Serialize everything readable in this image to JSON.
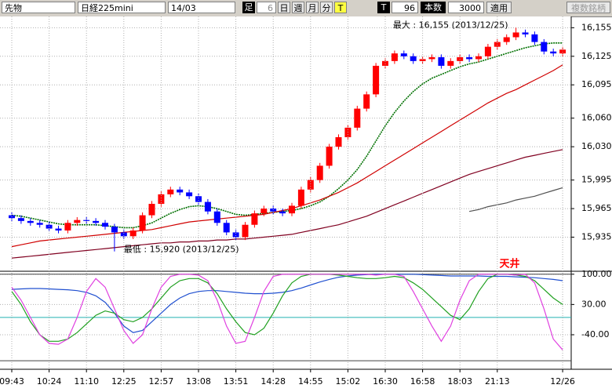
{
  "toolbar": {
    "market": "先物",
    "symbol": "日経225mini",
    "contract": "14/03",
    "bar_label": "足",
    "bar_value": "6",
    "day": "日",
    "week": "週",
    "month": "月",
    "minute": "分",
    "t_button": "T",
    "t_label": "T",
    "count_value": "96",
    "count_label": "本数",
    "count_input": "3000",
    "apply": "適用",
    "multi": "複数銘柄"
  },
  "chart_data": [
    {
      "type": "candlestick",
      "up_color": "#ff0000",
      "down_color": "#0000ff",
      "max_label": "最大 : 16,155 (2013/12/25)",
      "min_label": "最低 : 15,920 (2013/12/25)",
      "open": [
        15958,
        15955,
        15952,
        15950,
        15948,
        15944,
        15942,
        15950,
        15953,
        15952,
        15950,
        15946,
        15940,
        15936,
        15942,
        15958,
        15970,
        15980,
        15985,
        15982,
        15978,
        15972,
        15962,
        15950,
        15940,
        15935,
        15948,
        15960,
        15965,
        15962,
        15960,
        15968,
        15985,
        15995,
        16010,
        16030,
        16040,
        16050,
        16070,
        16085,
        16115,
        16120,
        16128,
        16125,
        16120,
        16122,
        16124,
        16115,
        16120,
        16124,
        16122,
        16125,
        16135,
        16140,
        16145,
        16150,
        16148,
        16140,
        16130,
        16128
      ],
      "close": [
        15955,
        15952,
        15950,
        15948,
        15944,
        15942,
        15950,
        15953,
        15952,
        15950,
        15946,
        15940,
        15936,
        15942,
        15958,
        15970,
        15980,
        15985,
        15982,
        15978,
        15972,
        15962,
        15950,
        15940,
        15935,
        15948,
        15960,
        15965,
        15962,
        15960,
        15968,
        15985,
        15995,
        16010,
        16030,
        16040,
        16050,
        16070,
        16085,
        16115,
        16120,
        16128,
        16125,
        16120,
        16122,
        16124,
        16115,
        16120,
        16124,
        16122,
        16125,
        16135,
        16140,
        16145,
        16150,
        16148,
        16140,
        16130,
        16128,
        16132
      ],
      "high": [
        15961,
        15958,
        15955,
        15953,
        15951,
        15947,
        15953,
        15956,
        15956,
        15955,
        15953,
        15949,
        15943,
        15945,
        15961,
        15973,
        15983,
        15988,
        15988,
        15985,
        15981,
        15975,
        15965,
        15953,
        15943,
        15951,
        15963,
        15968,
        15968,
        15965,
        15971,
        15988,
        15998,
        16013,
        16033,
        16043,
        16053,
        16073,
        16088,
        16118,
        16123,
        16131,
        16131,
        16128,
        16125,
        16127,
        16127,
        16123,
        16127,
        16127,
        16128,
        16138,
        16143,
        16148,
        16155,
        16153,
        16151,
        16143,
        16133,
        16135
      ],
      "low": [
        15952,
        15949,
        15947,
        15945,
        15941,
        15939,
        15939,
        15947,
        15949,
        15947,
        15943,
        15920,
        15933,
        15933,
        15939,
        15955,
        15967,
        15977,
        15979,
        15975,
        15969,
        15959,
        15947,
        15937,
        15932,
        15932,
        15945,
        15957,
        15959,
        15957,
        15957,
        15965,
        15982,
        15992,
        16007,
        16027,
        16037,
        16047,
        16067,
        16082,
        16112,
        16117,
        16122,
        16117,
        16117,
        16119,
        16112,
        16112,
        16117,
        16119,
        16119,
        16122,
        16132,
        16137,
        16142,
        16145,
        16137,
        16127,
        16125,
        16125
      ],
      "series": [
        {
          "color": "#007000",
          "dotted": true,
          "values": [
            15958,
            15957,
            15955,
            15953,
            15951,
            15949,
            15948,
            15948,
            15948,
            15948,
            15947,
            15946,
            15945,
            15945,
            15947,
            15950,
            15955,
            15960,
            15964,
            15967,
            15968,
            15967,
            15965,
            15962,
            15959,
            15958,
            15959,
            15960,
            15961,
            15962,
            15963,
            15965,
            15968,
            15972,
            15978,
            15986,
            15995,
            16006,
            16020,
            16036,
            16052,
            16066,
            16078,
            16088,
            16096,
            16102,
            16106,
            16110,
            16114,
            16117,
            16119,
            16122,
            16125,
            16128,
            16131,
            16134,
            16136,
            16138,
            16139,
            16139
          ]
        },
        {
          "color": "#d00000",
          "dotted": false,
          "values": [
            15925,
            15927,
            15929,
            15931,
            15932,
            15933,
            15934,
            15935,
            15936,
            15937,
            15938,
            15939,
            15940,
            15941,
            15942,
            15943,
            15945,
            15947,
            15949,
            15951,
            15952,
            15953,
            15954,
            15955,
            15956,
            15957,
            15958,
            15959,
            15961,
            15963,
            15965,
            15968,
            15971,
            15974,
            15978,
            15982,
            15987,
            15992,
            15998,
            16004,
            16010,
            16016,
            16022,
            16028,
            16034,
            16040,
            16046,
            16052,
            16058,
            16064,
            16070,
            16076,
            16081,
            16086,
            16090,
            16095,
            16100,
            16105,
            16110,
            16116
          ]
        },
        {
          "color": "#800020",
          "dotted": false,
          "values": [
            15913,
            15914,
            15915,
            15916,
            15917,
            15918,
            15919,
            15920,
            15921,
            15922,
            15923,
            15924,
            15925,
            15926,
            15927,
            15928,
            15929,
            15929,
            15930,
            15930,
            15931,
            15931,
            15932,
            15932,
            15933,
            15933,
            15934,
            15935,
            15936,
            15937,
            15938,
            15940,
            15942,
            15944,
            15946,
            15948,
            15951,
            15954,
            15957,
            15961,
            15965,
            15969,
            15973,
            15977,
            15981,
            15985,
            15989,
            15993,
            15997,
            16001,
            16004,
            16007,
            16010,
            16013,
            16016,
            16019,
            16021,
            16023,
            16025,
            16027
          ]
        },
        {
          "color": "#505050",
          "dotted": false,
          "values": [
            null,
            null,
            null,
            null,
            null,
            null,
            null,
            null,
            null,
            null,
            null,
            null,
            null,
            null,
            null,
            null,
            null,
            null,
            null,
            null,
            null,
            null,
            null,
            null,
            null,
            null,
            null,
            null,
            null,
            null,
            null,
            null,
            null,
            null,
            null,
            null,
            null,
            null,
            null,
            null,
            null,
            null,
            null,
            null,
            null,
            null,
            null,
            null,
            null,
            15962,
            15964,
            15967,
            15969,
            15971,
            15974,
            15976,
            15978,
            15981,
            15984,
            15987
          ]
        }
      ],
      "ylim": [
        15900,
        16166
      ],
      "yticks": [
        {
          "value": 16155,
          "label": "16,155"
        },
        {
          "value": 16125,
          "label": "16,125"
        },
        {
          "value": 16095,
          "label": "16,095"
        },
        {
          "value": 16060,
          "label": "16,060"
        },
        {
          "value": 16030,
          "label": "16,030"
        },
        {
          "value": 15995,
          "label": "15,995"
        },
        {
          "value": 15965,
          "label": "15,965"
        },
        {
          "value": 15935,
          "label": "15,935"
        }
      ],
      "grid": true
    },
    {
      "type": "line",
      "annotation": "天井",
      "annotation_color": "#ff0000",
      "categories": [
        "09:43",
        null,
        null,
        null,
        "10:24",
        null,
        null,
        null,
        "11:10",
        null,
        null,
        null,
        "12:25",
        null,
        null,
        null,
        "12:57",
        null,
        null,
        null,
        "13:08",
        null,
        null,
        null,
        "13:51",
        null,
        null,
        null,
        "14:28",
        null,
        null,
        null,
        "14:55",
        null,
        null,
        null,
        "15:02",
        null,
        null,
        null,
        "16:30",
        null,
        null,
        null,
        "16:58",
        null,
        null,
        null,
        "18:03",
        null,
        null,
        null,
        "21:13",
        null,
        null,
        null,
        null,
        null,
        null,
        "12/26"
      ],
      "series": [
        {
          "color": "#2050d0",
          "values": [
            65,
            66,
            67,
            67,
            66,
            65,
            64,
            62,
            58,
            50,
            35,
            10,
            -20,
            -35,
            -30,
            -10,
            10,
            30,
            45,
            55,
            60,
            62,
            62,
            60,
            58,
            56,
            55,
            55,
            56,
            58,
            62,
            68,
            75,
            82,
            88,
            93,
            96,
            98,
            99,
            100,
            100,
            100,
            100,
            100,
            99,
            98,
            97,
            96,
            96,
            96,
            96,
            95,
            95,
            95,
            94,
            93,
            92,
            90,
            88,
            85
          ]
        },
        {
          "color": "#20a020",
          "values": [
            60,
            30,
            -10,
            -40,
            -55,
            -55,
            -50,
            -35,
            -15,
            5,
            15,
            10,
            -5,
            -10,
            0,
            20,
            45,
            70,
            85,
            90,
            90,
            80,
            55,
            20,
            -10,
            -35,
            -40,
            -25,
            10,
            50,
            80,
            95,
            100,
            100,
            100,
            98,
            95,
            92,
            90,
            90,
            92,
            95,
            92,
            80,
            65,
            45,
            25,
            5,
            -5,
            20,
            60,
            90,
            100,
            100,
            98,
            95,
            85,
            65,
            45,
            30
          ]
        },
        {
          "color": "#e040e0",
          "values": [
            70,
            40,
            0,
            -40,
            -60,
            -62,
            -50,
            0,
            60,
            90,
            70,
            20,
            -30,
            -60,
            -40,
            20,
            70,
            95,
            100,
            100,
            98,
            85,
            40,
            -20,
            -60,
            -55,
            0,
            60,
            95,
            100,
            100,
            100,
            100,
            100,
            100,
            100,
            100,
            100,
            100,
            98,
            100,
            100,
            95,
            60,
            20,
            -20,
            -55,
            -20,
            40,
            85,
            100,
            100,
            100,
            100,
            98,
            100,
            80,
            20,
            -50,
            -75
          ]
        }
      ],
      "hlines": [
        {
          "value": 100,
          "color": "#404040"
        },
        {
          "value": 0,
          "color": "#20b0b0"
        },
        {
          "value": -100,
          "color": "#404040"
        }
      ],
      "ylim": [
        -118,
        105
      ],
      "yticks": [
        {
          "value": 100,
          "label": "100.00"
        },
        {
          "value": 30,
          "label": "30.00"
        },
        {
          "value": -40,
          "label": "-40.00"
        }
      ],
      "grid": true
    }
  ]
}
